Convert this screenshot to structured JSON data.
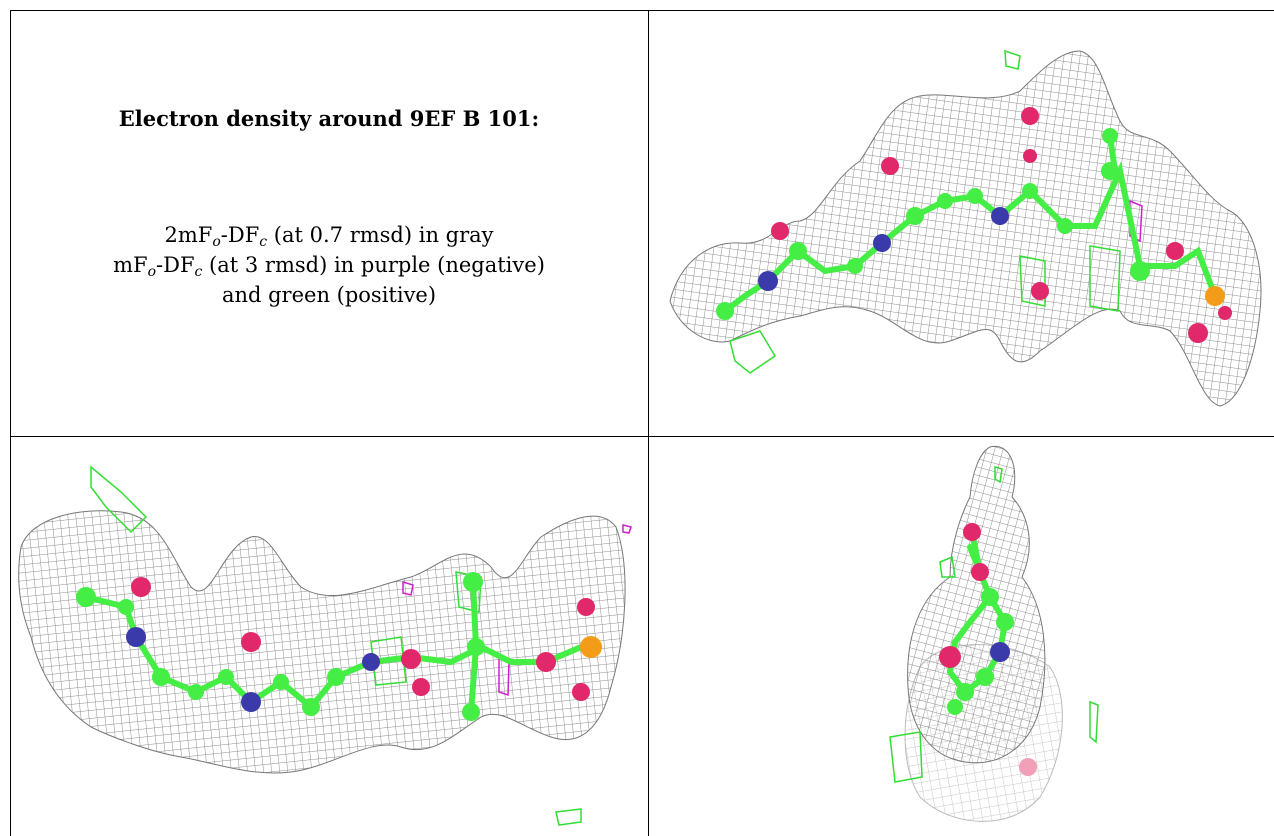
{
  "caption": {
    "title": "Electron density around 9EF B 101:",
    "line1": {
      "prefix": "2mF",
      "sub1": "o",
      "mid": "-DF",
      "sub2": "c",
      "suffix": " (at 0.7 rmsd) in gray"
    },
    "line2": {
      "prefix": "mF",
      "sub1": "o",
      "mid": "-DF",
      "sub2": "c",
      "suffix": " (at 3 rmsd) in purple (negative)"
    },
    "line3": "and green (positive)"
  },
  "colors": {
    "density_2fofc": "#9a9a9a",
    "fofc_negative": "#cc22cc",
    "fofc_positive": "#33dd33",
    "carbon": "#44ee44",
    "nitrogen": "#3a3aaa",
    "oxygen": "#e0286a",
    "phosphorus": "#f39c1a"
  },
  "panels": [
    {
      "view": "top-right"
    },
    {
      "view": "bottom-left"
    },
    {
      "view": "bottom-right"
    }
  ]
}
